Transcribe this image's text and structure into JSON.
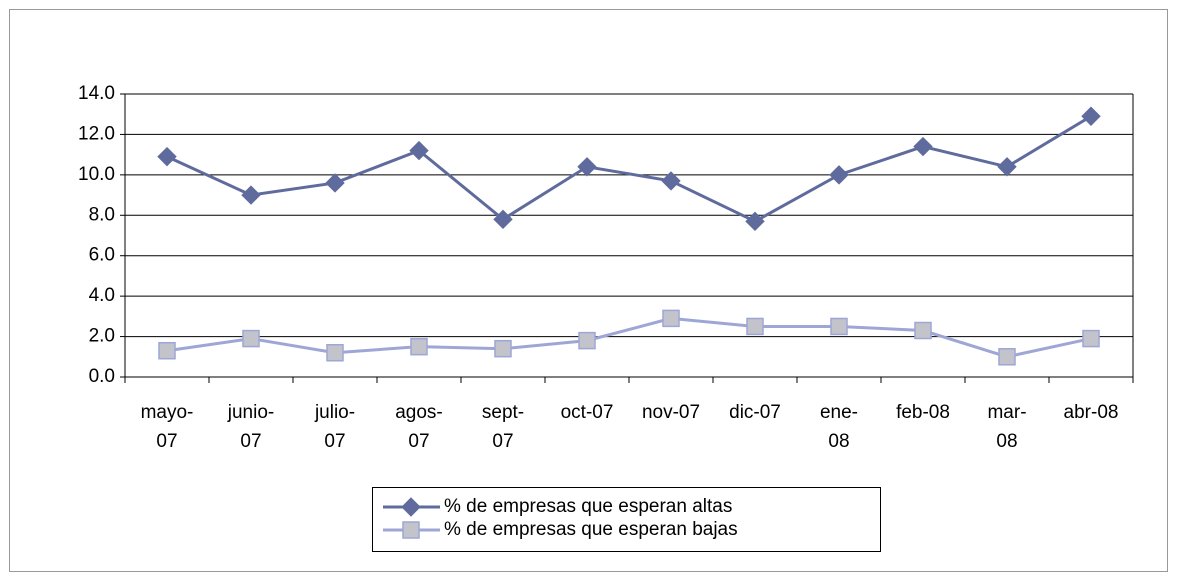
{
  "chart_data": {
    "type": "line",
    "categories": [
      "mayo-\n07",
      "junio-\n07",
      "julio-\n07",
      "agos-\n07",
      "sept-\n07",
      "oct-07",
      "nov-07",
      "dic-07",
      "ene-\n08",
      "feb-08",
      "mar-\n08",
      "abr-08"
    ],
    "series": [
      {
        "name": "% de empresas que esperan altas",
        "color": "#5f6b9d",
        "marker": "diamond",
        "marker_color": "#5f6b9d",
        "values": [
          10.9,
          9.0,
          9.6,
          11.2,
          7.8,
          10.4,
          9.7,
          7.7,
          10.0,
          11.4,
          10.4,
          12.9
        ]
      },
      {
        "name": "% de empresas que esperan bajas",
        "color": "#9ea6d6",
        "marker": "square",
        "marker_color": "#c3c3cb",
        "values": [
          1.3,
          1.9,
          1.2,
          1.5,
          1.4,
          1.8,
          2.9,
          2.5,
          2.5,
          2.3,
          1.0,
          1.9
        ]
      }
    ],
    "ylim": [
      0,
      14
    ],
    "yticks": [
      {
        "value": 0,
        "label": "0.0"
      },
      {
        "value": 2,
        "label": "2.0"
      },
      {
        "value": 4,
        "label": "4.0"
      },
      {
        "value": 6,
        "label": "6.0"
      },
      {
        "value": 8,
        "label": "8.0"
      },
      {
        "value": 10,
        "label": "10.0"
      },
      {
        "value": 12,
        "label": "12.0"
      },
      {
        "value": 14,
        "label": "14.0"
      }
    ],
    "grid": true,
    "legend": "bottom"
  }
}
